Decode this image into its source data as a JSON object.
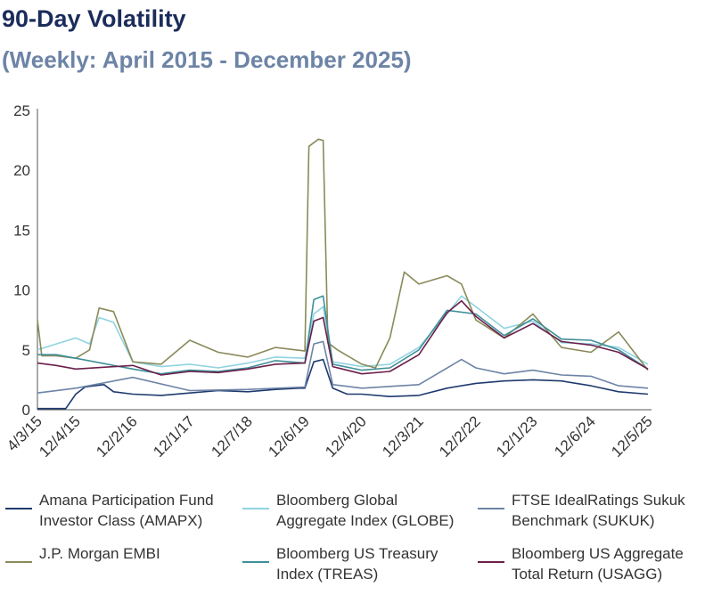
{
  "chart_data": {
    "type": "line",
    "title": "90-Day Volatility",
    "subtitle": "(Weekly: April 2015 - December 2025)",
    "xlabel": "",
    "ylabel": "",
    "ylim": [
      0,
      25
    ],
    "y_ticks": [
      "0",
      "5",
      "10",
      "15",
      "20",
      "25"
    ],
    "x_ticks": [
      "4/3/15",
      "12/4/15",
      "12/2/16",
      "12/1/17",
      "12/7/18",
      "12/6/19",
      "12/4/20",
      "12/3/21",
      "12/2/22",
      "12/1/23",
      "12/6/24",
      "12/5/25"
    ],
    "grid": false,
    "legend": "bottom",
    "series": [
      {
        "name": "Amana Participation Fund\nInvestor Class (AMAPX)",
        "color": "#1f3a6e",
        "x": [
          "4/3/15",
          "8/1/15",
          "10/1/15",
          "12/4/15",
          "2/1/16",
          "4/1/16",
          "6/1/16",
          "8/1/16",
          "12/2/16",
          "6/1/17",
          "12/1/17",
          "6/1/18",
          "12/7/18",
          "6/1/19",
          "11/1/19",
          "12/6/19",
          "2/1/20",
          "4/1/20",
          "6/1/20",
          "9/1/20",
          "12/4/20",
          "6/1/21",
          "12/3/21",
          "6/1/22",
          "12/2/22",
          "6/1/23",
          "12/1/23",
          "6/1/24",
          "12/6/24",
          "6/1/25",
          "12/5/25"
        ],
        "y": [
          0.1,
          0.1,
          0.1,
          1.3,
          1.9,
          2.0,
          2.1,
          1.5,
          1.3,
          1.2,
          1.4,
          1.6,
          1.5,
          1.7,
          1.8,
          1.8,
          4.0,
          4.2,
          1.8,
          1.3,
          1.3,
          1.1,
          1.2,
          1.8,
          2.2,
          2.4,
          2.5,
          2.4,
          2.0,
          1.5,
          1.3
        ]
      },
      {
        "name": "Bloomberg Global\nAggregate Index (GLOBE)",
        "color": "#8fd3e0",
        "x": [
          "4/3/15",
          "8/1/15",
          "12/4/15",
          "3/1/16",
          "5/1/16",
          "8/1/16",
          "12/2/16",
          "6/1/17",
          "12/1/17",
          "6/1/18",
          "12/7/18",
          "6/1/19",
          "12/6/19",
          "2/1/20",
          "4/1/20",
          "6/1/20",
          "12/4/20",
          "6/1/21",
          "12/3/21",
          "6/1/22",
          "9/1/22",
          "12/2/22",
          "6/1/23",
          "12/1/23",
          "6/1/24",
          "12/6/24",
          "6/1/25",
          "12/5/25"
        ],
        "y": [
          5.0,
          5.5,
          6.0,
          5.5,
          7.7,
          7.3,
          4.0,
          3.6,
          3.8,
          3.5,
          3.9,
          4.4,
          4.3,
          8.0,
          8.6,
          4.0,
          3.6,
          3.8,
          5.2,
          8.0,
          9.5,
          8.6,
          6.8,
          7.4,
          5.6,
          5.5,
          5.2,
          3.8
        ]
      },
      {
        "name": "FTSE IdealRatings Sukuk\nBenchmark (SUKUK)",
        "color": "#6d84a6",
        "x": [
          "4/3/15",
          "12/4/15",
          "12/2/16",
          "12/1/17",
          "12/7/18",
          "12/6/19",
          "2/1/20",
          "4/1/20",
          "6/1/20",
          "12/4/20",
          "12/3/21",
          "9/1/22",
          "12/2/22",
          "6/1/23",
          "12/1/23",
          "6/1/24",
          "12/6/24",
          "6/1/25",
          "12/5/25"
        ],
        "y": [
          1.4,
          1.8,
          2.7,
          1.6,
          1.7,
          1.9,
          5.5,
          5.7,
          2.1,
          1.8,
          2.1,
          4.2,
          3.5,
          3.0,
          3.3,
          2.9,
          2.8,
          2.0,
          1.8
        ]
      },
      {
        "name": "J.P. Morgan EMBI",
        "color": "#8a8a5a",
        "x": [
          "4/3/15",
          "5/1/15",
          "8/1/15",
          "12/4/15",
          "3/1/16",
          "5/1/16",
          "8/1/16",
          "12/2/16",
          "6/1/17",
          "12/1/17",
          "6/1/18",
          "12/7/18",
          "6/1/19",
          "12/6/19",
          "1/1/20",
          "3/1/20",
          "4/1/20",
          "5/1/20",
          "7/1/20",
          "12/4/20",
          "3/1/21",
          "6/1/21",
          "9/1/21",
          "12/3/21",
          "6/1/22",
          "9/1/22",
          "12/2/22",
          "6/1/23",
          "12/1/23",
          "6/1/24",
          "12/6/24",
          "6/1/25",
          "12/5/25"
        ],
        "y": [
          7.5,
          4.5,
          4.5,
          4.3,
          5.0,
          8.5,
          8.2,
          4.0,
          3.8,
          5.8,
          4.8,
          4.4,
          5.2,
          4.9,
          22.0,
          22.6,
          22.5,
          5.6,
          5.0,
          3.8,
          3.5,
          6.0,
          11.5,
          10.5,
          11.2,
          10.5,
          7.5,
          6.0,
          8.0,
          5.2,
          4.8,
          6.5,
          3.3
        ]
      },
      {
        "name": "Bloomberg US Treasury\nIndex (TREAS)",
        "color": "#3f8f99",
        "x": [
          "4/3/15",
          "8/1/15",
          "12/4/15",
          "12/2/16",
          "6/1/17",
          "12/1/17",
          "6/1/18",
          "12/7/18",
          "6/1/19",
          "12/6/19",
          "2/1/20",
          "4/1/20",
          "6/1/20",
          "12/4/20",
          "6/1/21",
          "12/3/21",
          "6/1/22",
          "12/2/22",
          "6/1/23",
          "12/1/23",
          "6/1/24",
          "12/6/24",
          "6/1/25",
          "12/5/25"
        ],
        "y": [
          4.6,
          4.6,
          4.3,
          3.4,
          3.0,
          3.3,
          3.2,
          3.5,
          4.1,
          3.9,
          9.2,
          9.5,
          3.8,
          3.3,
          3.5,
          5.0,
          8.3,
          8.0,
          6.2,
          7.6,
          5.9,
          5.8,
          5.0,
          3.4
        ]
      },
      {
        "name": "Bloomberg US Aggregate\nTotal Return (USAGG)",
        "color": "#6b1f4a",
        "x": [
          "4/3/15",
          "8/1/15",
          "12/4/15",
          "12/2/16",
          "6/1/17",
          "12/1/17",
          "6/1/18",
          "12/7/18",
          "6/1/19",
          "12/6/19",
          "2/1/20",
          "4/1/20",
          "6/1/20",
          "12/4/20",
          "6/1/21",
          "12/3/21",
          "6/1/22",
          "9/1/22",
          "12/2/22",
          "6/1/23",
          "12/1/23",
          "6/1/24",
          "12/6/24",
          "6/1/25",
          "12/5/25"
        ],
        "y": [
          3.9,
          3.7,
          3.4,
          3.7,
          2.9,
          3.2,
          3.1,
          3.4,
          3.8,
          3.9,
          7.4,
          7.7,
          3.6,
          3.0,
          3.2,
          4.6,
          8.1,
          9.1,
          7.8,
          6.0,
          7.2,
          5.7,
          5.4,
          4.8,
          3.4
        ]
      }
    ]
  }
}
